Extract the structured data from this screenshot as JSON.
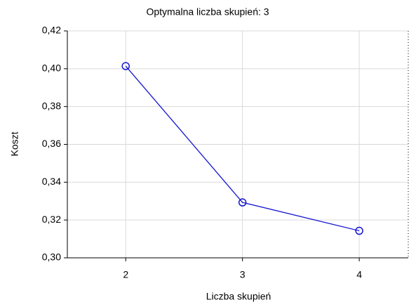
{
  "chart_data": {
    "type": "line",
    "title": "Optymalna liczba skupień: 3",
    "xlabel": "Liczba skupień",
    "ylabel": "Koszt",
    "x": [
      2,
      3,
      4
    ],
    "series": [
      {
        "name": "Koszt",
        "color": "#1414d2",
        "values": [
          0.4014,
          0.3293,
          0.3143
        ]
      }
    ],
    "xlim": [
      1.5,
      4.42
    ],
    "xticks": [
      2,
      3,
      4
    ],
    "ylim": [
      0.3,
      0.42
    ],
    "yticks": [
      {
        "value": 0.3,
        "label": "0,30"
      },
      {
        "value": 0.32,
        "label": "0,32"
      },
      {
        "value": 0.34,
        "label": "0,34"
      },
      {
        "value": 0.36,
        "label": "0,36"
      },
      {
        "value": 0.38,
        "label": "0,38"
      },
      {
        "value": 0.4,
        "label": "0,40"
      },
      {
        "value": 0.42,
        "label": "0,42"
      }
    ],
    "grid": true
  }
}
